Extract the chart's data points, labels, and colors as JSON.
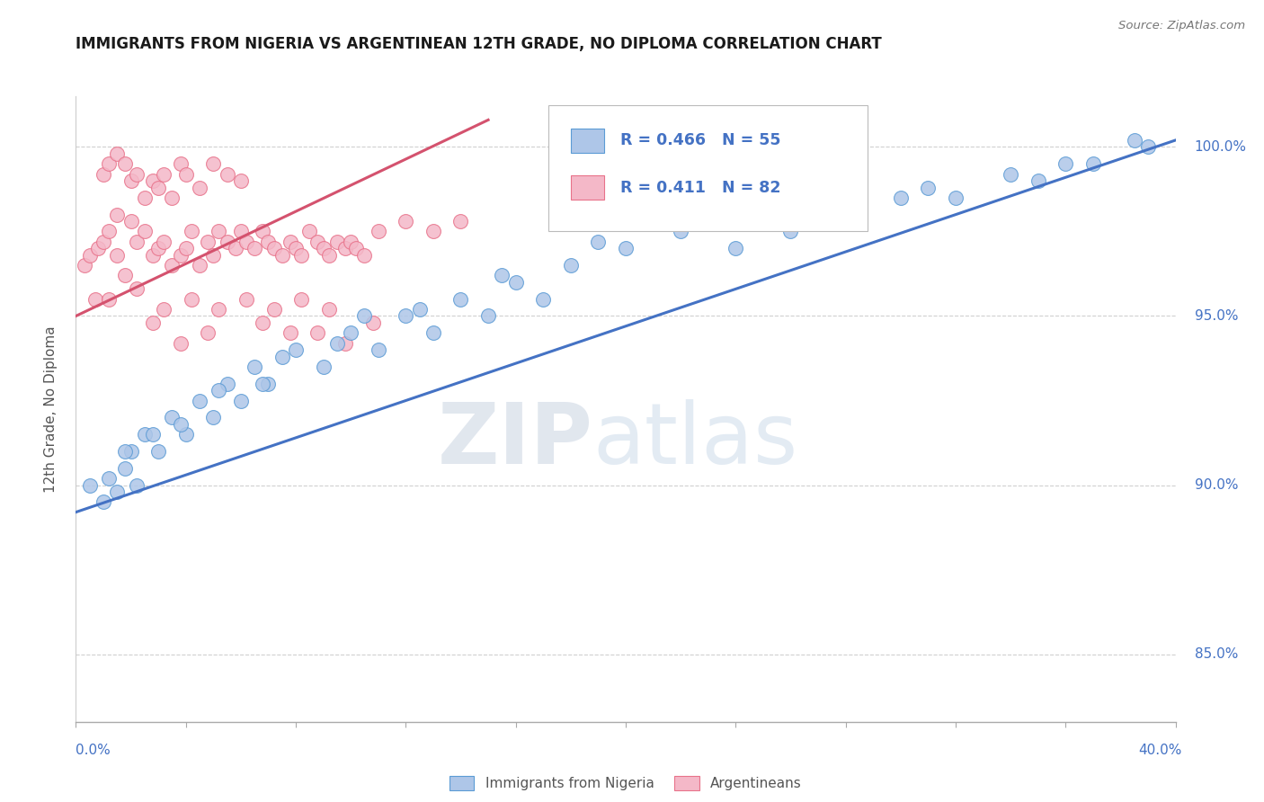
{
  "title": "IMMIGRANTS FROM NIGERIA VS ARGENTINEAN 12TH GRADE, NO DIPLOMA CORRELATION CHART",
  "source_text": "Source: ZipAtlas.com",
  "xmin": 0.0,
  "xmax": 40.0,
  "ymin": 83.0,
  "ymax": 101.5,
  "legend_blue_r": "R = 0.466",
  "legend_blue_n": "N = 55",
  "legend_pink_r": "R = 0.411",
  "legend_pink_n": "N = 82",
  "legend_label_blue": "Immigrants from Nigeria",
  "legend_label_pink": "Argentineans",
  "watermark_zip": "ZIP",
  "watermark_atlas": "atlas",
  "blue_color": "#aec6e8",
  "pink_color": "#f4b8c8",
  "blue_edge_color": "#5b9bd5",
  "pink_edge_color": "#e8728a",
  "blue_line_color": "#4472c4",
  "pink_line_color": "#d4526e",
  "title_color": "#1a1a1a",
  "axis_label_color": "#4472c4",
  "ylabel_color": "#555555",
  "grid_color": "#d0d0d0",
  "blue_scatter_x": [
    0.5,
    1.0,
    1.2,
    1.5,
    1.8,
    2.0,
    2.2,
    2.5,
    3.0,
    3.5,
    4.0,
    4.5,
    5.0,
    5.5,
    6.0,
    6.5,
    7.0,
    8.0,
    9.0,
    10.0,
    11.0,
    12.0,
    13.0,
    14.0,
    15.0,
    16.0,
    17.0,
    18.0,
    20.0,
    22.0,
    24.0,
    26.0,
    28.0,
    30.0,
    32.0,
    35.0,
    37.0,
    38.5,
    1.8,
    2.8,
    3.8,
    5.2,
    7.5,
    9.5,
    12.5,
    15.5,
    19.0,
    23.0,
    27.0,
    31.0,
    34.0,
    36.0,
    39.0,
    6.8,
    10.5
  ],
  "blue_scatter_y": [
    90.0,
    89.5,
    90.2,
    89.8,
    90.5,
    91.0,
    90.0,
    91.5,
    91.0,
    92.0,
    91.5,
    92.5,
    92.0,
    93.0,
    92.5,
    93.5,
    93.0,
    94.0,
    93.5,
    94.5,
    94.0,
    95.0,
    94.5,
    95.5,
    95.0,
    96.0,
    95.5,
    96.5,
    97.0,
    97.5,
    97.0,
    97.5,
    98.0,
    98.5,
    98.5,
    99.0,
    99.5,
    100.2,
    91.0,
    91.5,
    91.8,
    92.8,
    93.8,
    94.2,
    95.2,
    96.2,
    97.2,
    97.8,
    98.2,
    98.8,
    99.2,
    99.5,
    100.0,
    93.0,
    95.0
  ],
  "pink_scatter_x": [
    0.3,
    0.5,
    0.7,
    0.8,
    1.0,
    1.0,
    1.2,
    1.2,
    1.5,
    1.5,
    1.5,
    1.8,
    1.8,
    2.0,
    2.0,
    2.2,
    2.2,
    2.5,
    2.5,
    2.8,
    2.8,
    3.0,
    3.0,
    3.2,
    3.2,
    3.5,
    3.5,
    3.8,
    3.8,
    4.0,
    4.0,
    4.2,
    4.5,
    4.5,
    4.8,
    5.0,
    5.0,
    5.2,
    5.5,
    5.5,
    5.8,
    6.0,
    6.0,
    6.2,
    6.5,
    6.8,
    7.0,
    7.2,
    7.5,
    7.8,
    8.0,
    8.2,
    8.5,
    8.8,
    9.0,
    9.2,
    9.5,
    9.8,
    10.0,
    10.2,
    10.5,
    11.0,
    12.0,
    13.0,
    14.0,
    1.2,
    2.2,
    3.2,
    4.2,
    5.2,
    6.2,
    7.2,
    8.2,
    9.2,
    2.8,
    4.8,
    6.8,
    8.8,
    10.8,
    3.8,
    7.8,
    9.8
  ],
  "pink_scatter_y": [
    96.5,
    96.8,
    95.5,
    97.0,
    97.2,
    99.2,
    97.5,
    99.5,
    96.8,
    98.0,
    99.8,
    96.2,
    99.5,
    97.8,
    99.0,
    97.2,
    99.2,
    97.5,
    98.5,
    96.8,
    99.0,
    97.0,
    98.8,
    97.2,
    99.2,
    96.5,
    98.5,
    96.8,
    99.5,
    97.0,
    99.2,
    97.5,
    96.5,
    98.8,
    97.2,
    96.8,
    99.5,
    97.5,
    97.2,
    99.2,
    97.0,
    97.5,
    99.0,
    97.2,
    97.0,
    97.5,
    97.2,
    97.0,
    96.8,
    97.2,
    97.0,
    96.8,
    97.5,
    97.2,
    97.0,
    96.8,
    97.2,
    97.0,
    97.2,
    97.0,
    96.8,
    97.5,
    97.8,
    97.5,
    97.8,
    95.5,
    95.8,
    95.2,
    95.5,
    95.2,
    95.5,
    95.2,
    95.5,
    95.2,
    94.8,
    94.5,
    94.8,
    94.5,
    94.8,
    94.2,
    94.5,
    94.2
  ]
}
